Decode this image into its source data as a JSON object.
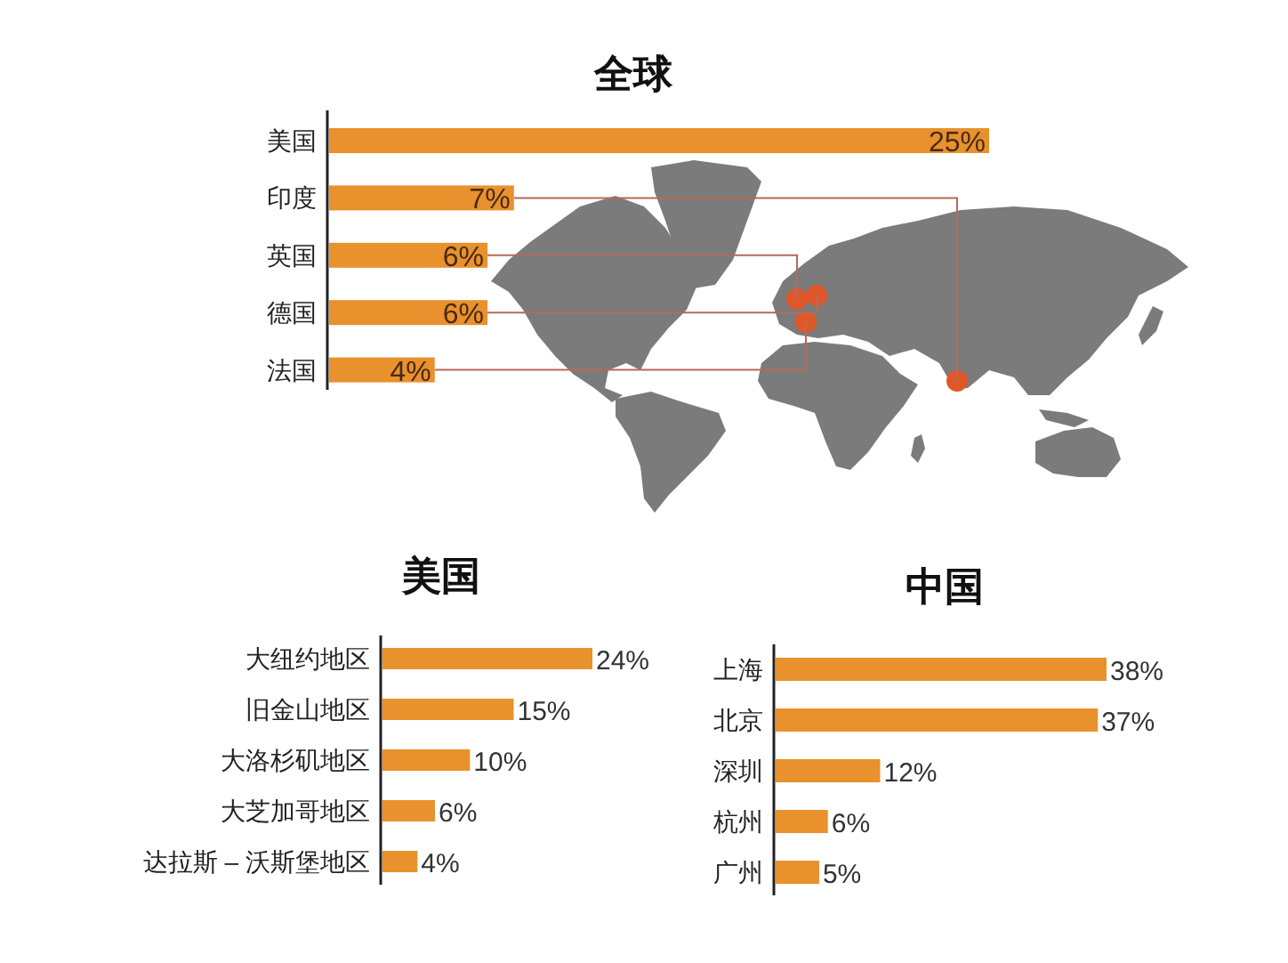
{
  "chart_data": [
    {
      "type": "bar",
      "title": "全球",
      "orientation": "horizontal",
      "categories": [
        "美国",
        "印度",
        "英国",
        "德国",
        "法国"
      ],
      "values": [
        25,
        7,
        6,
        6,
        4
      ],
      "value_labels": [
        "25%",
        "7%",
        "6%",
        "6%",
        "4%"
      ],
      "color": "#e8912d"
    },
    {
      "type": "bar",
      "title": "美国",
      "orientation": "horizontal",
      "categories": [
        "大纽约地区",
        "旧金山地区",
        "大洛杉矶地区",
        "大芝加哥地区",
        "达拉斯 – 沃斯堡地区"
      ],
      "values": [
        24,
        15,
        10,
        6,
        4
      ],
      "value_labels": [
        "24%",
        "15%",
        "10%",
        "6%",
        "4%"
      ],
      "color": "#e8912d"
    },
    {
      "type": "bar",
      "title": "中国",
      "orientation": "horizontal",
      "categories": [
        "上海",
        "北京",
        "深圳",
        "杭州",
        "广州"
      ],
      "values": [
        38,
        37,
        12,
        6,
        5
      ],
      "value_labels": [
        "38%",
        "37%",
        "12%",
        "6%",
        "5%"
      ],
      "color": "#e8912d"
    }
  ]
}
